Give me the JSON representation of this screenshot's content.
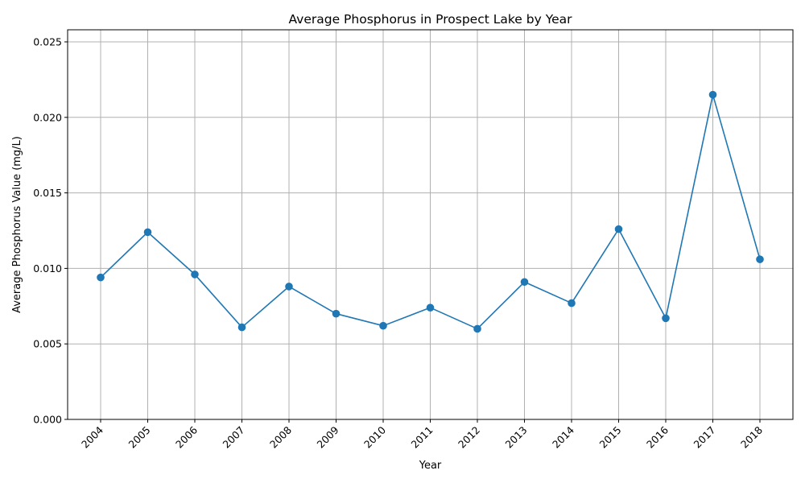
{
  "chart_data": {
    "type": "line",
    "title": "Average Phosphorus in Prospect Lake by Year",
    "xlabel": "Year",
    "ylabel": "Average Phosphorus Value (mg/L)",
    "categories": [
      "2004",
      "2005",
      "2006",
      "2007",
      "2008",
      "2009",
      "2010",
      "2011",
      "2012",
      "2013",
      "2014",
      "2015",
      "2016",
      "2017",
      "2018"
    ],
    "series": [
      {
        "values": [
          0.0094,
          0.0124,
          0.0096,
          0.0061,
          0.0088,
          0.007,
          0.0062,
          0.0074,
          0.006,
          0.0091,
          0.0077,
          0.0126,
          0.0067,
          0.0215,
          0.0106
        ],
        "color": "#1f77b4",
        "marker": "circle"
      }
    ],
    "ylim": [
      0,
      0.0258
    ],
    "yticks": [
      "0.000",
      "0.005",
      "0.010",
      "0.015",
      "0.020",
      "0.025"
    ],
    "ytick_values": [
      0,
      0.005,
      0.01,
      0.015,
      0.02,
      0.025
    ],
    "grid": true,
    "colors": {
      "line": "#1f77b4",
      "grid": "#b0b0b0",
      "axis": "#000000"
    }
  }
}
